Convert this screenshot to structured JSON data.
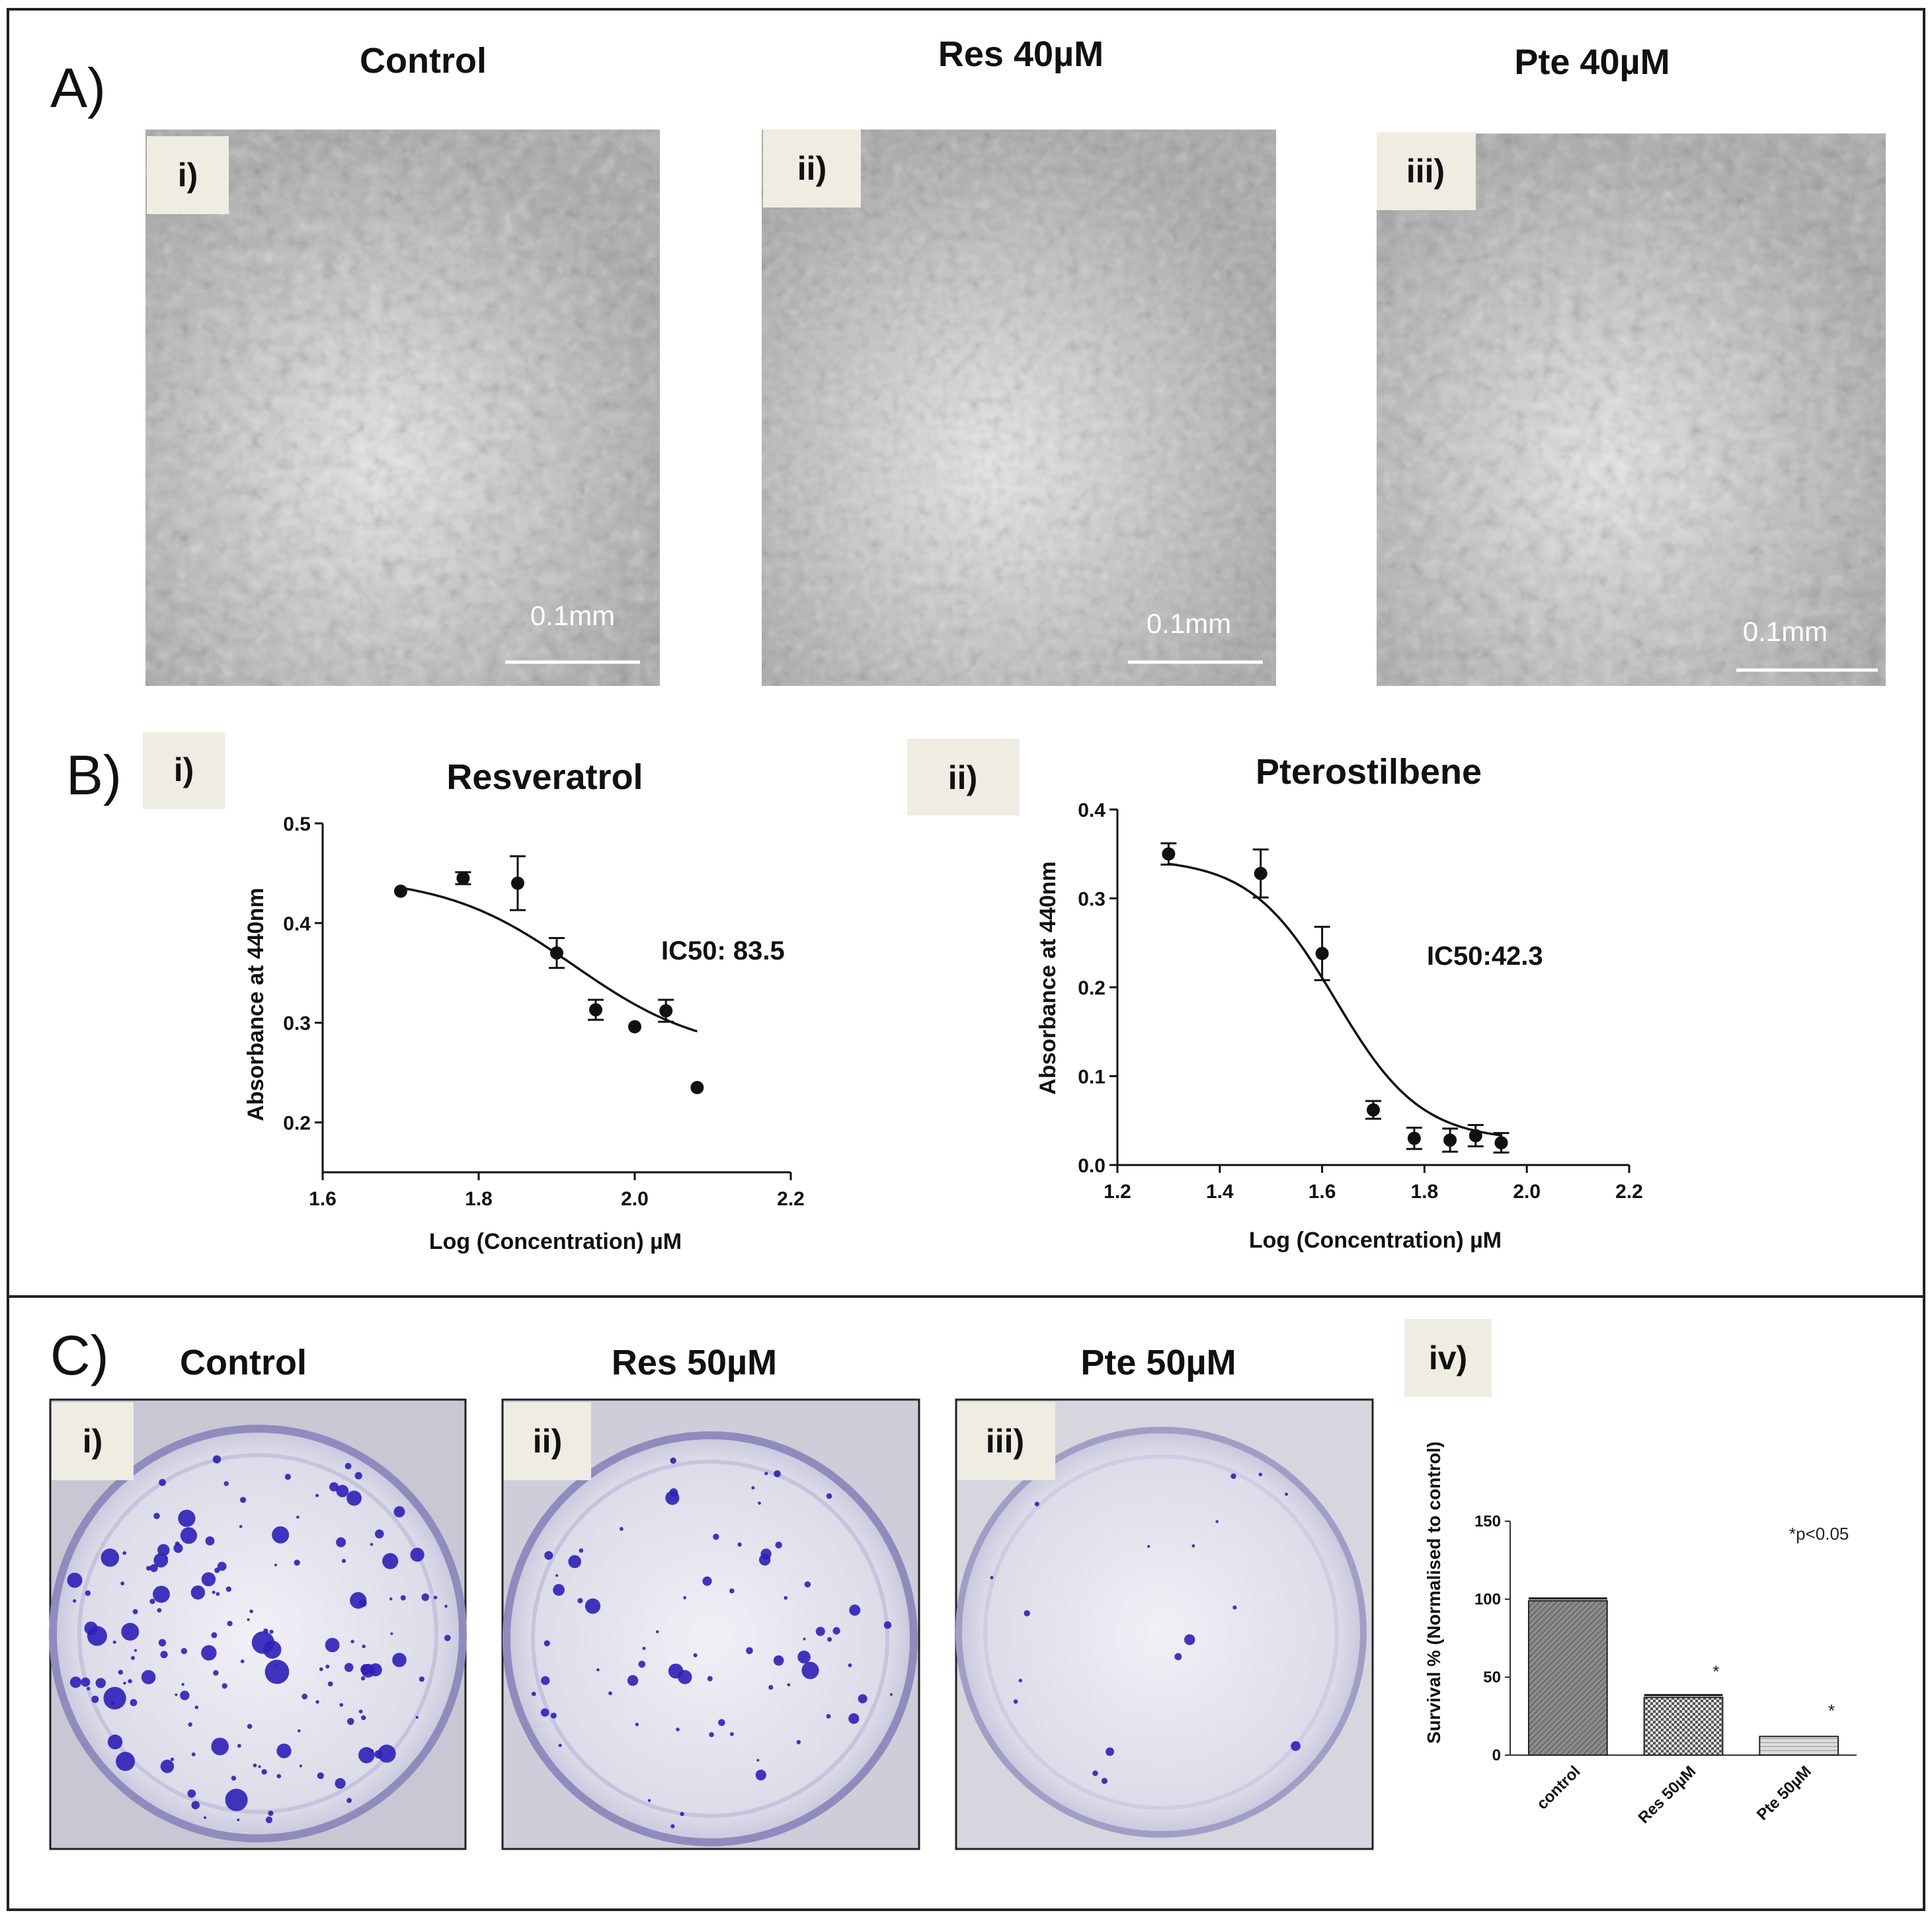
{
  "panel_letters": [
    "A)",
    "B)",
    "C)"
  ],
  "panelA": {
    "titles": [
      "Control",
      "Res 40µM",
      "Pte 40µM"
    ],
    "sublabels": [
      "i)",
      "ii)",
      "iii)"
    ],
    "scale_bar": "0.1mm"
  },
  "panelC": {
    "titles": [
      "Control",
      "Res 50µM",
      "Pte 50µM"
    ],
    "sublabels": [
      "i)",
      "ii)",
      "iii)",
      "iv)"
    ]
  },
  "chart_data": [
    {
      "id": "resveratrol",
      "type": "scatter",
      "sublabel": "i)",
      "title": "Resveratrol",
      "xlabel": "Log (Concentration) µM",
      "ylabel": "Absorbance at 440nm",
      "annotation": "IC50: 83.5",
      "xlim": [
        1.6,
        2.2
      ],
      "ylim": [
        0.15,
        0.5
      ],
      "xticks": [
        "1.6",
        "1.8",
        "2.0",
        "2.2"
      ],
      "yticks": [
        "0.2",
        "0.3",
        "0.4",
        "0.5"
      ],
      "points": [
        {
          "x": 1.7,
          "y": 0.432,
          "err": 0
        },
        {
          "x": 1.78,
          "y": 0.445,
          "err": 0.006
        },
        {
          "x": 1.85,
          "y": 0.44,
          "err": 0.027
        },
        {
          "x": 1.9,
          "y": 0.37,
          "err": 0.015
        },
        {
          "x": 1.95,
          "y": 0.313,
          "err": 0.01
        },
        {
          "x": 2.0,
          "y": 0.296,
          "err": 0
        },
        {
          "x": 2.04,
          "y": 0.312,
          "err": 0.011
        },
        {
          "x": 2.08,
          "y": 0.235,
          "err": 0
        }
      ],
      "fit": {
        "top": 0.447,
        "bottom": 0.268,
        "logIC50": 1.922,
        "hill": 12
      }
    },
    {
      "id": "pterostilbene",
      "type": "scatter",
      "sublabel": "ii)",
      "title": "Pterostilbene",
      "xlabel": "Log (Concentration) µM",
      "ylabel": "Absorbance at 440nm",
      "annotation": "IC50:42.3",
      "xlim": [
        1.2,
        2.2
      ],
      "ylim": [
        0.0,
        0.4
      ],
      "xticks": [
        "1.2",
        "1.4",
        "1.6",
        "1.8",
        "2.0",
        "2.2"
      ],
      "yticks": [
        "0.0",
        "0.1",
        "0.2",
        "0.3",
        "0.4"
      ],
      "points": [
        {
          "x": 1.3,
          "y": 0.35,
          "err": 0.012
        },
        {
          "x": 1.48,
          "y": 0.328,
          "err": 0.027
        },
        {
          "x": 1.6,
          "y": 0.238,
          "err": 0.03
        },
        {
          "x": 1.7,
          "y": 0.062,
          "err": 0.01
        },
        {
          "x": 1.78,
          "y": 0.03,
          "err": 0.012
        },
        {
          "x": 1.85,
          "y": 0.028,
          "err": 0.013
        },
        {
          "x": 1.9,
          "y": 0.033,
          "err": 0.012
        },
        {
          "x": 1.95,
          "y": 0.025,
          "err": 0.011
        }
      ],
      "fit": {
        "top": 0.345,
        "bottom": 0.027,
        "logIC50": 1.626,
        "hill": 12
      }
    },
    {
      "id": "survival",
      "type": "bar",
      "sublabel": "iv)",
      "ylabel": "Survival % (Normalised to control)",
      "annotation": "*p<0.05",
      "categories": [
        "control",
        "Res 50µM",
        "Pte 50µM"
      ],
      "values": [
        99,
        37,
        12
      ],
      "errors": [
        1.5,
        1.5,
        0
      ],
      "significant": [
        false,
        true,
        true
      ],
      "significance_marker": "*",
      "ylim": [
        0,
        150
      ],
      "yticks": [
        "0",
        "50",
        "100",
        "150"
      ],
      "colors": [
        "#7a7a7a",
        "#bdbdbd",
        "#d4d4d4"
      ]
    }
  ]
}
